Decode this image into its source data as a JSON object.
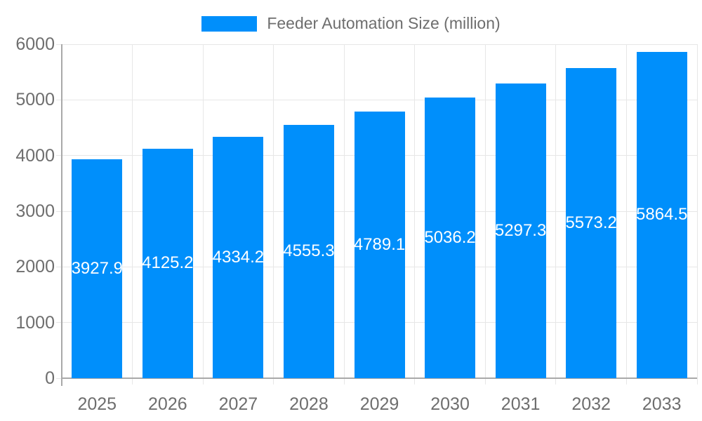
{
  "chart_data": {
    "type": "bar",
    "title": "Feeder Automation Size (million)",
    "legend": {
      "position": "top",
      "entries": [
        "Feeder Automation Size (million)"
      ]
    },
    "categories": [
      "2025",
      "2026",
      "2027",
      "2028",
      "2029",
      "2030",
      "2031",
      "2032",
      "2033"
    ],
    "values": [
      3927.9,
      4125.2,
      4334.2,
      4555.3,
      4789.1,
      5036.2,
      5297.3,
      5573.2,
      5864.5
    ],
    "data_labels": [
      "3927.9",
      "4125.2",
      "4334.2",
      "4555.3",
      "4789.1",
      "5036.2",
      "5297.3",
      "5573.2",
      "5864.5"
    ],
    "xlabel": "",
    "ylabel": "",
    "ylim": [
      0,
      6000
    ],
    "yticks": [
      0,
      1000,
      2000,
      3000,
      4000,
      5000,
      6000
    ],
    "grid": "horizontal-and-vertical",
    "colors": {
      "bar": "#008FFB",
      "data_label": "#FFFFFF",
      "axis_text": "#6E6E6E",
      "grid_line": "#E7E7E7",
      "axis_line": "#A9A9A9"
    }
  }
}
